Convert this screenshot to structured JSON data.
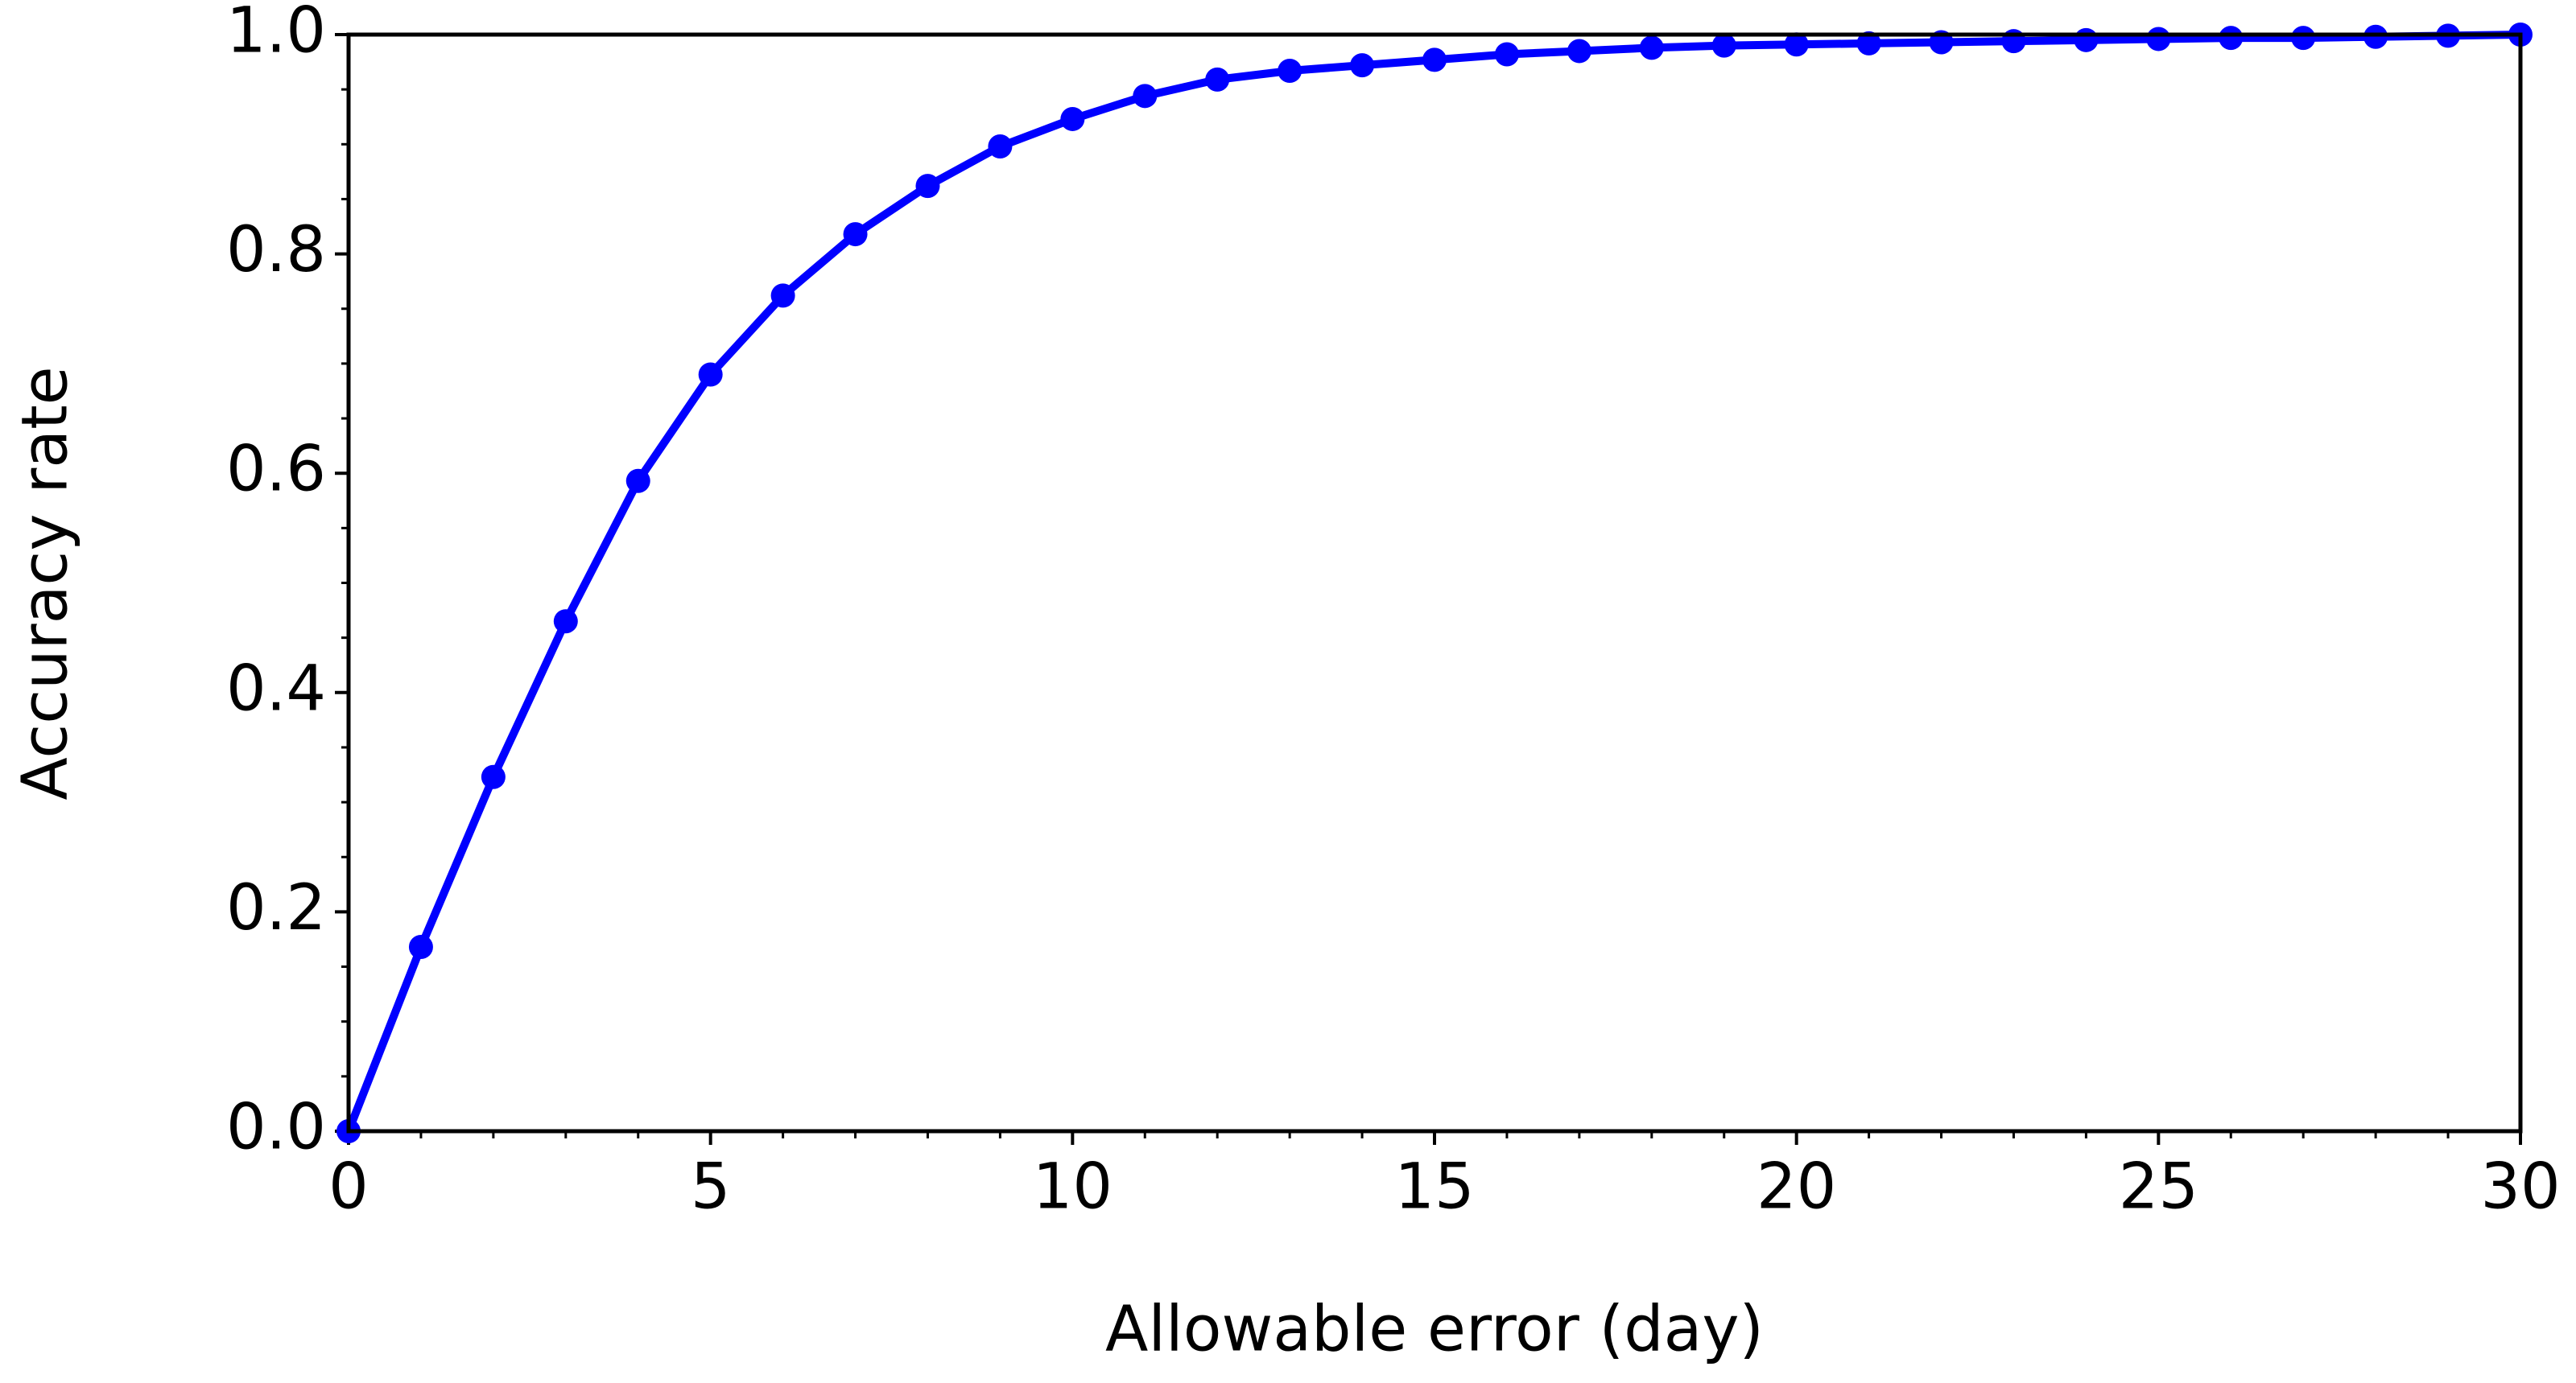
{
  "chart_data": {
    "type": "line",
    "xlabel": "Allowable error (day)",
    "ylabel": "Accuracy rate",
    "x": [
      0,
      1,
      2,
      3,
      4,
      5,
      6,
      7,
      8,
      9,
      10,
      11,
      12,
      13,
      14,
      15,
      16,
      17,
      18,
      19,
      20,
      21,
      22,
      23,
      24,
      25,
      26,
      27,
      28,
      29,
      30
    ],
    "series": [
      {
        "name": "Accuracy rate",
        "color": "#0000ff",
        "values": [
          0.0,
          0.168,
          0.323,
          0.465,
          0.593,
          0.69,
          0.762,
          0.818,
          0.862,
          0.898,
          0.923,
          0.944,
          0.959,
          0.967,
          0.972,
          0.977,
          0.982,
          0.985,
          0.988,
          0.99,
          0.991,
          0.992,
          0.993,
          0.994,
          0.995,
          0.996,
          0.997,
          0.997,
          0.998,
          0.999,
          1.0
        ]
      }
    ],
    "xlim": [
      0,
      30
    ],
    "ylim": [
      0,
      1
    ],
    "xticks": [
      0,
      5,
      10,
      15,
      20,
      25,
      30
    ],
    "yticks": [
      {
        "value": 0,
        "label": "0.0"
      },
      0.2,
      0.4,
      0.6,
      0.8,
      {
        "value": 1,
        "label": "1.0"
      }
    ],
    "xminorticks": [
      1,
      2,
      3,
      4,
      6,
      7,
      8,
      9,
      11,
      12,
      13,
      14,
      16,
      17,
      18,
      19,
      21,
      22,
      23,
      24,
      26,
      27,
      28,
      29
    ],
    "yminorticks": [
      0.05,
      0.1,
      0.15,
      0.25,
      0.3,
      0.35,
      0.45,
      0.5,
      0.55,
      0.65,
      0.7,
      0.75,
      0.85,
      0.9,
      0.95
    ],
    "grid": false
  }
}
